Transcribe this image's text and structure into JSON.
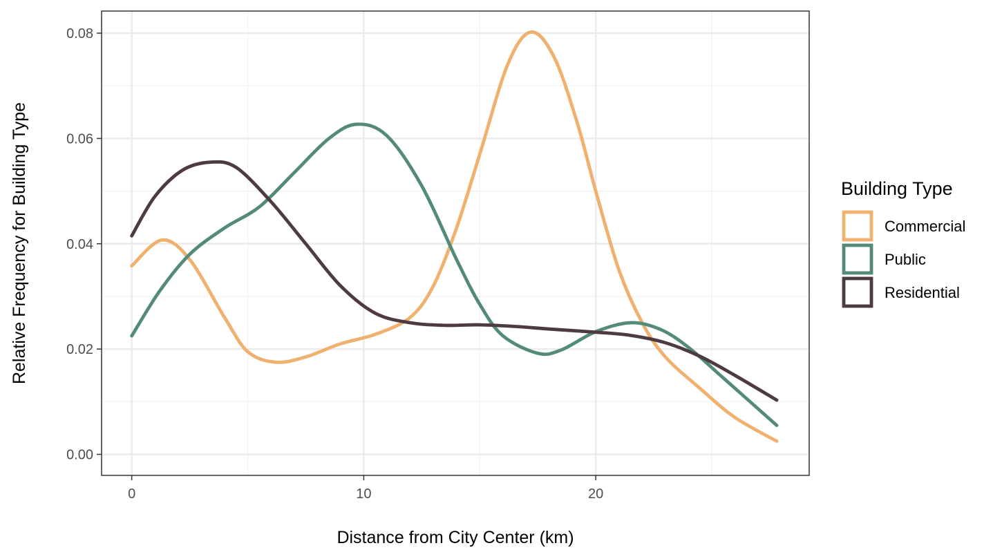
{
  "chart_data": {
    "type": "line",
    "title": "",
    "xlabel": "Distance from City Center (km)",
    "ylabel": "Relative Frequency for Building Type",
    "xlim": [
      -1.3,
      29.2
    ],
    "ylim": [
      -0.004,
      0.0842
    ],
    "x_ticks": [
      0,
      10,
      20
    ],
    "x_tick_labels": [
      "0",
      "10",
      "20"
    ],
    "y_ticks": [
      0,
      0.02,
      0.04,
      0.06,
      0.08
    ],
    "y_tick_labels": [
      "0.00",
      "0.02",
      "0.04",
      "0.06",
      "0.08"
    ],
    "grid": true,
    "legend": {
      "title": "Building Type",
      "position": "right"
    },
    "series": [
      {
        "name": "Commercial",
        "color": "#F0B06E",
        "points": [
          [
            0,
            0.0358
          ],
          [
            1.3,
            0.0407
          ],
          [
            2.5,
            0.037
          ],
          [
            4.0,
            0.026
          ],
          [
            5.0,
            0.0195
          ],
          [
            6.2,
            0.0175
          ],
          [
            7.5,
            0.0185
          ],
          [
            9.0,
            0.021
          ],
          [
            10.5,
            0.0228
          ],
          [
            12.0,
            0.026
          ],
          [
            13.0,
            0.032
          ],
          [
            14.0,
            0.043
          ],
          [
            15.0,
            0.057
          ],
          [
            16.2,
            0.074
          ],
          [
            17.2,
            0.0802
          ],
          [
            18.2,
            0.0755
          ],
          [
            19.2,
            0.063
          ],
          [
            20.0,
            0.05
          ],
          [
            21.0,
            0.035
          ],
          [
            22.0,
            0.025
          ],
          [
            23.0,
            0.0185
          ],
          [
            24.5,
            0.0125
          ],
          [
            26.0,
            0.007
          ],
          [
            27.8,
            0.0025
          ]
        ]
      },
      {
        "name": "Public",
        "color": "#538A7A",
        "points": [
          [
            0,
            0.0225
          ],
          [
            1.2,
            0.031
          ],
          [
            2.5,
            0.038
          ],
          [
            4.0,
            0.043
          ],
          [
            5.5,
            0.047
          ],
          [
            7.0,
            0.0535
          ],
          [
            8.5,
            0.06
          ],
          [
            9.7,
            0.0627
          ],
          [
            11.0,
            0.0605
          ],
          [
            12.5,
            0.051
          ],
          [
            14.0,
            0.037
          ],
          [
            15.0,
            0.0285
          ],
          [
            16.0,
            0.0225
          ],
          [
            17.5,
            0.0192
          ],
          [
            18.5,
            0.0198
          ],
          [
            20.0,
            0.0233
          ],
          [
            21.5,
            0.025
          ],
          [
            22.8,
            0.0237
          ],
          [
            24.0,
            0.0203
          ],
          [
            25.5,
            0.0145
          ],
          [
            27.8,
            0.0055
          ]
        ]
      },
      {
        "name": "Residential",
        "color": "#4E3A42",
        "points": [
          [
            0,
            0.0415
          ],
          [
            1.0,
            0.049
          ],
          [
            2.2,
            0.054
          ],
          [
            3.4,
            0.0555
          ],
          [
            4.5,
            0.0545
          ],
          [
            6.0,
            0.048
          ],
          [
            7.5,
            0.04
          ],
          [
            9.0,
            0.032
          ],
          [
            10.5,
            0.0268
          ],
          [
            12.0,
            0.025
          ],
          [
            13.5,
            0.0245
          ],
          [
            15.0,
            0.0246
          ],
          [
            16.5,
            0.0243
          ],
          [
            18.0,
            0.0238
          ],
          [
            20.0,
            0.0232
          ],
          [
            21.5,
            0.0226
          ],
          [
            23.0,
            0.0212
          ],
          [
            24.5,
            0.0186
          ],
          [
            26.0,
            0.015
          ],
          [
            27.8,
            0.0103
          ]
        ]
      }
    ]
  }
}
